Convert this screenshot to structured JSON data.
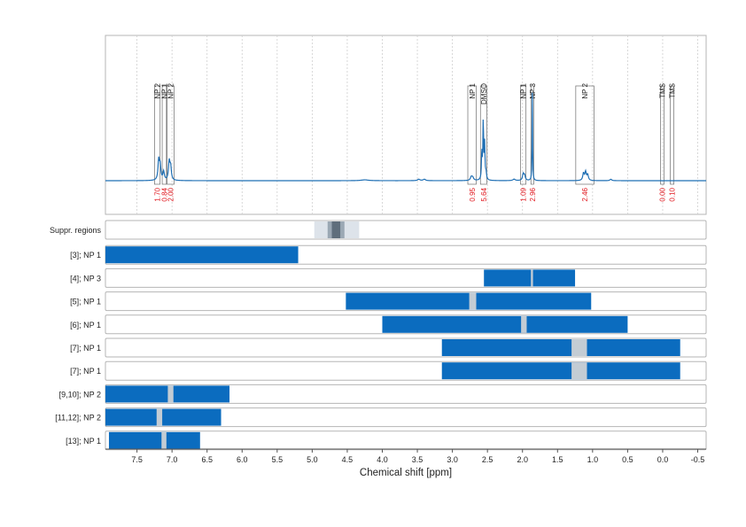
{
  "chart_data": {
    "type": "line",
    "xlabel": "Chemical shift [ppm]",
    "xlim": [
      7.95,
      -0.62
    ],
    "x_ticks": [
      "7.5",
      "7.0",
      "6.5",
      "6.0",
      "5.5",
      "5.0",
      "4.5",
      "4.0",
      "3.5",
      "3.0",
      "2.5",
      "2.0",
      "1.5",
      "1.0",
      "0.5",
      "0.0",
      "-0.5"
    ],
    "x_tick_values": [
      7.5,
      7.0,
      6.5,
      6.0,
      5.5,
      5.0,
      4.5,
      4.0,
      3.5,
      3.0,
      2.5,
      2.0,
      1.5,
      1.0,
      0.5,
      0.0,
      -0.5
    ],
    "grid": true,
    "colors": {
      "spectrum": "#1f6fb4",
      "bar": "#0b6cbf",
      "gap": "#c3ccd4",
      "integral": "#e0141b",
      "frame": "#b5b5b5"
    },
    "spectrum_peaks": [
      {
        "ppm": 7.19,
        "height": 0.14,
        "width": 0.012
      },
      {
        "ppm": 7.17,
        "height": 0.1,
        "width": 0.012
      },
      {
        "ppm": 7.12,
        "height": 0.06,
        "width": 0.012
      },
      {
        "ppm": 7.04,
        "height": 0.13,
        "width": 0.012
      },
      {
        "ppm": 7.02,
        "height": 0.09,
        "width": 0.012
      },
      {
        "ppm": 4.25,
        "height": 0.006,
        "width": 0.06
      },
      {
        "ppm": 3.48,
        "height": 0.01,
        "width": 0.02
      },
      {
        "ppm": 3.4,
        "height": 0.01,
        "width": 0.02
      },
      {
        "ppm": 2.73,
        "height": 0.025,
        "width": 0.015
      },
      {
        "ppm": 2.71,
        "height": 0.02,
        "width": 0.015
      },
      {
        "ppm": 2.58,
        "height": 0.2,
        "width": 0.006
      },
      {
        "ppm": 2.56,
        "height": 0.42,
        "width": 0.006
      },
      {
        "ppm": 2.54,
        "height": 0.25,
        "width": 0.006
      },
      {
        "ppm": 2.52,
        "height": 0.05,
        "width": 0.008
      },
      {
        "ppm": 2.12,
        "height": 0.01,
        "width": 0.02
      },
      {
        "ppm": 1.99,
        "height": 0.045,
        "width": 0.012
      },
      {
        "ppm": 1.97,
        "height": 0.035,
        "width": 0.012
      },
      {
        "ppm": 1.86,
        "height": 0.62,
        "width": 0.004
      },
      {
        "ppm": 1.13,
        "height": 0.05,
        "width": 0.012
      },
      {
        "ppm": 1.1,
        "height": 0.06,
        "width": 0.012
      },
      {
        "ppm": 1.07,
        "height": 0.04,
        "width": 0.012
      },
      {
        "ppm": 0.74,
        "height": 0.01,
        "width": 0.015
      }
    ],
    "peak_boxes": [
      {
        "label": "NP 2",
        "from": 7.25,
        "to": 7.17,
        "integral": "1.70"
      },
      {
        "label": "NP 1",
        "from": 7.14,
        "to": 7.08,
        "integral": "0.84"
      },
      {
        "label": "NP 2",
        "from": 7.07,
        "to": 6.97,
        "integral": "2.00"
      },
      {
        "label": "NP 1",
        "from": 2.78,
        "to": 2.66,
        "integral": "0.95"
      },
      {
        "label": "DMSO",
        "from": 2.6,
        "to": 2.51,
        "integral": "5.64"
      },
      {
        "label": "NP 1",
        "from": 2.03,
        "to": 1.95,
        "integral": "1.09"
      },
      {
        "label": "NP 3",
        "from": 1.88,
        "to": 1.84,
        "integral": "2.96"
      },
      {
        "label": "NP 2",
        "from": 1.24,
        "to": 0.98,
        "integral": "2.46"
      },
      {
        "label": "TMS",
        "from": 0.03,
        "to": -0.02,
        "integral": "0.00"
      },
      {
        "label": "TMS",
        "from": -0.11,
        "to": -0.16,
        "integral": "0.10"
      }
    ],
    "suppressed_regions": {
      "label": "Suppr. regions",
      "layers": [
        {
          "from": 4.97,
          "to": 4.33,
          "shade": "#dde3ea"
        },
        {
          "from": 4.78,
          "to": 4.54,
          "shade": "#9ba8b4"
        },
        {
          "from": 4.72,
          "to": 4.6,
          "shade": "#5f6e7c"
        }
      ]
    },
    "range_rows": [
      {
        "label": "[3]; NP 1",
        "from": 7.95,
        "to": 5.2,
        "gaps": []
      },
      {
        "label": "[4]; NP 3",
        "from": 2.55,
        "to": 1.25,
        "gaps": [
          [
            1.88,
            1.85
          ]
        ]
      },
      {
        "label": "[5]; NP 1",
        "from": 4.52,
        "to": 1.02,
        "gaps": [
          [
            2.76,
            2.66
          ]
        ]
      },
      {
        "label": "[6]; NP 1",
        "from": 4.0,
        "to": 0.5,
        "gaps": [
          [
            2.02,
            1.94
          ]
        ]
      },
      {
        "label": "[7]; NP 1",
        "from": 3.15,
        "to": -0.25,
        "gaps": [
          [
            1.3,
            1.08
          ]
        ]
      },
      {
        "label": "[7]; NP 1",
        "from": 3.15,
        "to": -0.25,
        "gaps": [
          [
            1.3,
            1.08
          ]
        ]
      },
      {
        "label": "[9,10]; NP 2",
        "from": 7.95,
        "to": 6.18,
        "gaps": [
          [
            7.06,
            6.98
          ]
        ]
      },
      {
        "label": "[11,12]; NP 2",
        "from": 7.95,
        "to": 6.3,
        "gaps": [
          [
            7.22,
            7.14
          ]
        ]
      },
      {
        "label": "[13]; NP 1",
        "from": 7.9,
        "to": 6.6,
        "gaps": [
          [
            7.15,
            7.08
          ]
        ]
      }
    ]
  }
}
